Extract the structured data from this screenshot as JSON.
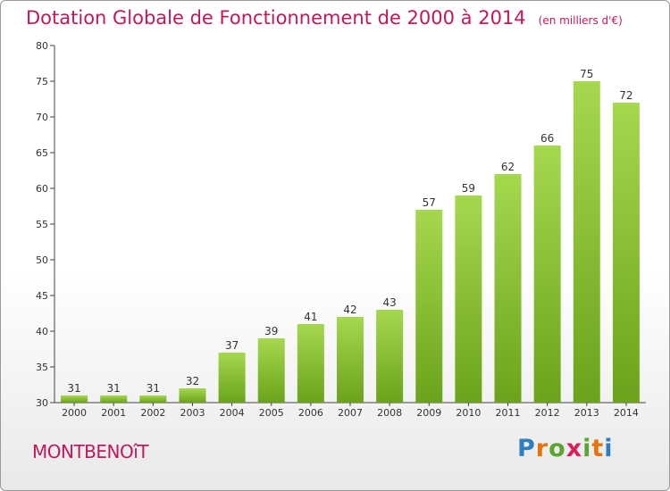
{
  "title": "Dotation Globale de Fonctionnement de 2000 à 2014",
  "unit_note": "(en milliers d'€)",
  "commune": "MONTBENOîT",
  "logo": {
    "letters": [
      "P",
      "r",
      "o",
      "x",
      "i",
      "t",
      "i"
    ],
    "colors": [
      "#2e7fc1",
      "#e8730c",
      "#5aa532",
      "#d81e5b",
      "#5aa532",
      "#e8730c",
      "#2e7fc1"
    ]
  },
  "colors": {
    "bar_light": "#a6d84e",
    "bar_dark": "#6aa31b",
    "accent": "#c2185b"
  },
  "chart_data": {
    "type": "bar",
    "categories": [
      "2000",
      "2001",
      "2002",
      "2003",
      "2004",
      "2005",
      "2006",
      "2007",
      "2008",
      "2009",
      "2010",
      "2011",
      "2012",
      "2013",
      "2014"
    ],
    "values": [
      31,
      31,
      31,
      32,
      37,
      39,
      41,
      42,
      43,
      57,
      59,
      62,
      66,
      75,
      72
    ],
    "ylim": [
      30,
      80
    ],
    "yticks": [
      30,
      35,
      40,
      45,
      50,
      55,
      60,
      65,
      70,
      75,
      80
    ],
    "grid": false
  }
}
